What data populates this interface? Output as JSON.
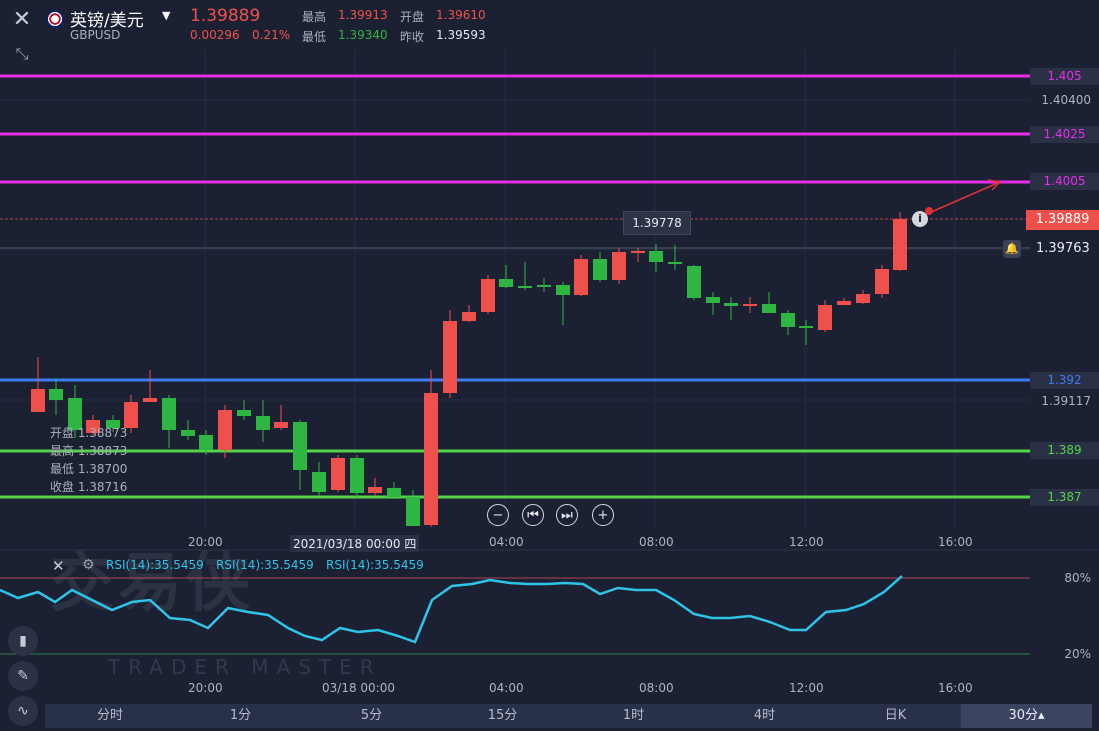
{
  "header": {
    "symbol_name": "英镑/美元",
    "symbol_code": "GBPUSD",
    "price": "1.39889",
    "change": "0.00296",
    "change_pct": "0.21%",
    "high_label": "最高",
    "high": "1.39913",
    "open_label": "开盘",
    "open": "1.39610",
    "low_label": "最低",
    "low": "1.39340",
    "prev_label": "昨收",
    "prev_close": "1.39593"
  },
  "price_axis": {
    "ticks": [
      "1.40400",
      "1.39117"
    ],
    "current_price": "1.39889",
    "alert_price": "1.39763",
    "crosshair_price": "1.39778"
  },
  "levels": [
    {
      "value": "1.405",
      "color": "#e62ee6"
    },
    {
      "value": "1.4025",
      "color": "#e62ee6"
    },
    {
      "value": "1.4005",
      "color": "#e62ee6"
    },
    {
      "value": "1.392",
      "color": "#3f7bf0"
    },
    {
      "value": "1.389",
      "color": "#55d24a"
    },
    {
      "value": "1.387",
      "color": "#55d24a"
    }
  ],
  "ohlc_tooltip": {
    "open": "开盘 1.38873",
    "high": "最高 1.38873",
    "low": "最低 1.38700",
    "close": "收盘 1.38716"
  },
  "nav_buttons": [
    "−",
    "⏮",
    "⏭",
    "+"
  ],
  "time_axis": {
    "labels": [
      "20:00",
      "2021/03/18 00:00 四",
      "04:00",
      "08:00",
      "12:00",
      "16:00"
    ]
  },
  "rsi_panel": {
    "labels": [
      "RSI(14):35.5459",
      "RSI(14):35.5459",
      "RSI(14):35.5459"
    ],
    "upper": "80%",
    "lower": "20%",
    "x_labels": [
      "20:00",
      "03/18 00:00",
      "04:00",
      "08:00",
      "12:00",
      "16:00"
    ]
  },
  "watermark": {
    "cn": "交易侠",
    "en": "TRADER MASTER"
  },
  "timeframes": [
    "分时",
    "1分",
    "5分",
    "15分",
    "1时",
    "4时",
    "日K",
    "30分▴"
  ],
  "colors": {
    "up": "#f0504c",
    "down": "#2fb541",
    "bg": "#1b2133",
    "rsi": "#2ec4e8"
  }
}
